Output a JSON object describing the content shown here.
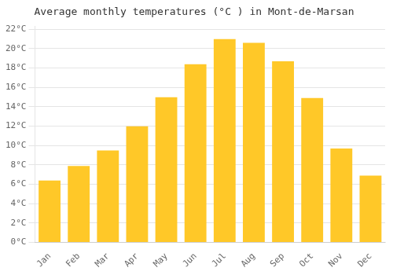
{
  "chart_data": {
    "type": "bar",
    "title": "Average monthly temperatures (°C ) in Mont-de-Marsan",
    "categories": [
      "Jan",
      "Feb",
      "Mar",
      "Apr",
      "May",
      "Jun",
      "Jul",
      "Aug",
      "Sep",
      "Oct",
      "Nov",
      "Dec"
    ],
    "values": [
      6.4,
      7.9,
      9.5,
      12.0,
      15.0,
      18.4,
      21.0,
      20.6,
      18.7,
      14.9,
      9.7,
      6.9
    ],
    "color": "#FFC828",
    "ylim": [
      0,
      22.3
    ],
    "yticks": [
      {
        "value": 0,
        "label": "0°C"
      },
      {
        "value": 2,
        "label": "2°C"
      },
      {
        "value": 4,
        "label": "4°C"
      },
      {
        "value": 6,
        "label": "6°C"
      },
      {
        "value": 8,
        "label": "8°C"
      },
      {
        "value": 10,
        "label": "10°C"
      },
      {
        "value": 12,
        "label": "12°C"
      },
      {
        "value": 14,
        "label": "14°C"
      },
      {
        "value": 16,
        "label": "16°C"
      },
      {
        "value": 18,
        "label": "18°C"
      },
      {
        "value": 20,
        "label": "20°C"
      },
      {
        "value": 22,
        "label": "22°C"
      }
    ],
    "grid": true
  }
}
